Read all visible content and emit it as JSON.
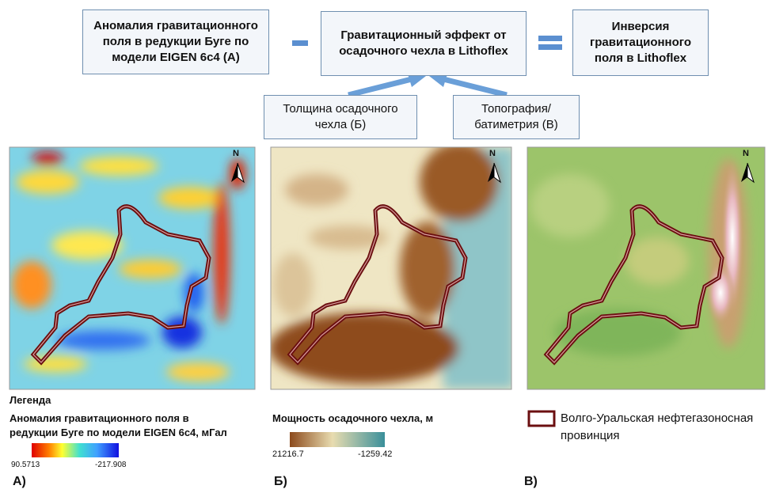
{
  "flow": {
    "gravity_anomaly_box": {
      "lines": [
        "Аномалия гравитационного",
        "поля в редукции Буге по",
        "модели EIGEN 6c4 (А)"
      ]
    },
    "sediment_effect_box": {
      "lines": [
        "Гравитационный эффект от",
        "осадочного чехла в Lithoflex"
      ]
    },
    "inversion_box": {
      "lines": [
        "Инверсия",
        "гравитационного",
        "поля в Lithoflex"
      ]
    },
    "thickness_box": {
      "lines": [
        "Толщина осадочного",
        "чехла (Б)"
      ]
    },
    "topography_box": {
      "lines": [
        "Топография/",
        "батиметрия (В)"
      ]
    }
  },
  "maps": {
    "north_label": "N",
    "a": {
      "panel_label": "А)",
      "legend_heading": "Легенда",
      "legend_title": [
        "Аномалия гравитационного поля в",
        "редукции Буге по модели EIGEN 6c4, мГал"
      ],
      "scale_max": "90.5713",
      "scale_min": "-217.908"
    },
    "b": {
      "panel_label": "Б)",
      "legend_title": "Мощность осадочного чехла, м",
      "scale_max": "21216.7",
      "scale_min": "-1259.42"
    },
    "c": {
      "panel_label": "В)",
      "legend_title": [
        "Волго-Уральская нефтегазоносная",
        "провинция"
      ]
    }
  }
}
